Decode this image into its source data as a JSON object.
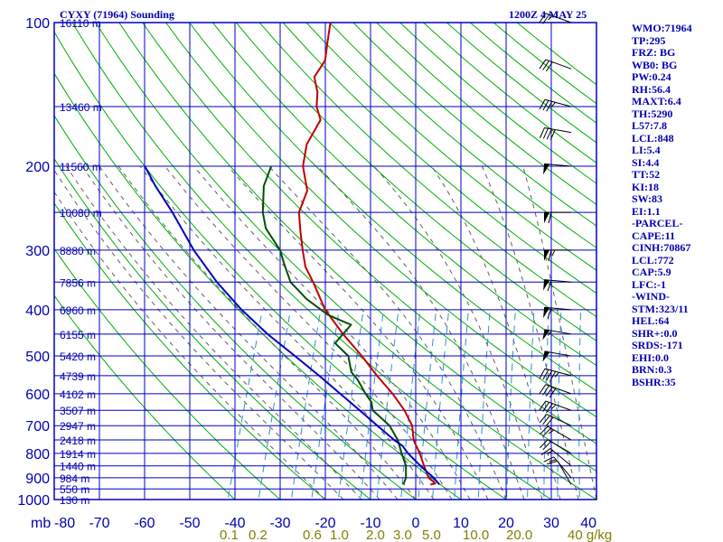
{
  "header": {
    "title": "CYXY (71964) Sounding",
    "time": "1200Z  4 MAY 25"
  },
  "colors": {
    "grid": "#0000c0",
    "isotherm": "#0000c0",
    "dry_adiabat": "#00b000",
    "moist_adiabat": "#606060",
    "mixing_ratio": "#3090d0",
    "temperature": "#c00000",
    "dewpoint": "#005000",
    "parcel": "#0000c0",
    "wind_barb": "#000000",
    "text": "#0000b0",
    "mixing_label": "#808000"
  },
  "indices": [
    "WMO:71964",
    "TP:295",
    "FRZ: BG",
    "WB0: BG",
    "PW:0.24",
    "RH:56.4",
    "MAXT:6.4",
    "TH:5290",
    "L57:7.8",
    "LCL:848",
    "LI:5.4",
    "SI:4.4",
    "TT:52",
    "KI:18",
    "SW:83",
    "EI:1.1",
    "-PARCEL-",
    "CAPE:11",
    "CINH:70867",
    "LCL:772",
    "CAP:5.9",
    "LFC:-1",
    "-WIND-",
    "STM:323/11",
    "HEL:64",
    "SHR+:0.0",
    "SRDS:-171",
    "EHI:0.0",
    "BRN:0.3",
    "BSHR:35"
  ],
  "chart_data": {
    "type": "line",
    "diagram": "skew-T log-P",
    "pressure_axis": {
      "unit": "mb",
      "labels": [
        "100",
        "200",
        "300",
        "400",
        "500",
        "600",
        "700",
        "800",
        "900",
        "1000"
      ],
      "range": [
        100,
        1000
      ],
      "log_scale": true
    },
    "temperature_axis": {
      "labels": [
        "-80",
        "-70",
        "-60",
        "-50",
        "-40",
        "-30",
        "-20",
        "-10",
        "0",
        "10",
        "20",
        "30",
        "40"
      ],
      "range": [
        -80,
        40
      ]
    },
    "mixing_ratio_labels": [
      "0.1",
      "0.2",
      "0.6",
      "1.0",
      "2.0",
      "3.0",
      "5.0",
      "10.0",
      "20.0",
      "40 g/kg"
    ],
    "height_labels": [
      {
        "p": 100,
        "label": "16110 m"
      },
      {
        "p": 150,
        "label": "13460 m"
      },
      {
        "p": 200,
        "label": "11560 m"
      },
      {
        "p": 250,
        "label": "10080 m"
      },
      {
        "p": 300,
        "label": "8880 m"
      },
      {
        "p": 350,
        "label": "7856 m"
      },
      {
        "p": 400,
        "label": "6960 m"
      },
      {
        "p": 450,
        "label": "6155 m"
      },
      {
        "p": 500,
        "label": "5420 m"
      },
      {
        "p": 550,
        "label": "4739 m"
      },
      {
        "p": 600,
        "label": "4102 m"
      },
      {
        "p": 650,
        "label": "3507 m"
      },
      {
        "p": 700,
        "label": "2947 m"
      },
      {
        "p": 750,
        "label": "2418 m"
      },
      {
        "p": 800,
        "label": "1914 m"
      },
      {
        "p": 850,
        "label": "1440 m"
      },
      {
        "p": 900,
        "label": "984 m"
      },
      {
        "p": 950,
        "label": "550 m"
      },
      {
        "p": 1000,
        "label": "130 m"
      }
    ],
    "mixing_ratio_lines_gkg": [
      0.1,
      0.2,
      0.4,
      0.6,
      1,
      1.5,
      2,
      3,
      4,
      5,
      7,
      10,
      15,
      20,
      25,
      30,
      40
    ],
    "series": [
      {
        "key": "temperature",
        "points": [
          [
            930,
            2
          ],
          [
            925,
            3
          ],
          [
            900,
            1
          ],
          [
            850,
            -1
          ],
          [
            800,
            -3
          ],
          [
            750,
            -5.5
          ],
          [
            700,
            -7
          ],
          [
            650,
            -10
          ],
          [
            600,
            -14
          ],
          [
            550,
            -19
          ],
          [
            500,
            -24
          ],
          [
            450,
            -30
          ],
          [
            400,
            -36
          ],
          [
            350,
            -41
          ],
          [
            325,
            -44
          ],
          [
            300,
            -46
          ],
          [
            275,
            -48
          ],
          [
            250,
            -50
          ],
          [
            225,
            -50
          ],
          [
            200,
            -53
          ],
          [
            180,
            -54
          ],
          [
            160,
            -53
          ],
          [
            150,
            -55
          ],
          [
            140,
            -56
          ],
          [
            130,
            -58
          ],
          [
            120,
            -57
          ],
          [
            110,
            -58
          ],
          [
            100,
            -59
          ]
        ]
      },
      {
        "key": "dewpoint",
        "points": [
          [
            930,
            -4
          ],
          [
            900,
            -4
          ],
          [
            850,
            -5
          ],
          [
            800,
            -7
          ],
          [
            750,
            -9
          ],
          [
            700,
            -12
          ],
          [
            650,
            -17
          ],
          [
            625,
            -18
          ],
          [
            600,
            -20
          ],
          [
            560,
            -23
          ],
          [
            540,
            -25
          ],
          [
            500,
            -27
          ],
          [
            470,
            -31
          ],
          [
            430,
            -29
          ],
          [
            420,
            -32
          ],
          [
            410,
            -35
          ],
          [
            380,
            -41
          ],
          [
            350,
            -46
          ],
          [
            320,
            -49
          ],
          [
            300,
            -51
          ],
          [
            270,
            -56
          ],
          [
            250,
            -58
          ],
          [
            220,
            -60
          ],
          [
            200,
            -60
          ]
        ]
      },
      {
        "key": "parcel",
        "points": [
          [
            930,
            4
          ],
          [
            900,
            2.1
          ],
          [
            850,
            -1.8
          ],
          [
            800,
            -5.6
          ],
          [
            772,
            -7.4
          ],
          [
            750,
            -9.8
          ],
          [
            700,
            -14.7
          ],
          [
            650,
            -19.9
          ],
          [
            600,
            -25.6
          ],
          [
            550,
            -31.8
          ],
          [
            500,
            -38.8
          ],
          [
            450,
            -46.7
          ],
          [
            400,
            -54.5
          ],
          [
            350,
            -62.3
          ],
          [
            300,
            -70.1
          ],
          [
            250,
            -78
          ],
          [
            220,
            -84
          ],
          [
            200,
            -88
          ]
        ]
      }
    ],
    "wind_barbs": [
      {
        "p": 930,
        "dir": 330,
        "spd": 10
      },
      {
        "p": 900,
        "dir": 320,
        "spd": 15
      },
      {
        "p": 850,
        "dir": 310,
        "spd": 15
      },
      {
        "p": 800,
        "dir": 300,
        "spd": 20
      },
      {
        "p": 750,
        "dir": 300,
        "spd": 25
      },
      {
        "p": 700,
        "dir": 295,
        "spd": 30
      },
      {
        "p": 650,
        "dir": 290,
        "spd": 35
      },
      {
        "p": 600,
        "dir": 290,
        "spd": 40
      },
      {
        "p": 550,
        "dir": 285,
        "spd": 45
      },
      {
        "p": 500,
        "dir": 280,
        "spd": 50
      },
      {
        "p": 450,
        "dir": 280,
        "spd": 55
      },
      {
        "p": 400,
        "dir": 275,
        "spd": 60
      },
      {
        "p": 350,
        "dir": 275,
        "spd": 60
      },
      {
        "p": 300,
        "dir": 270,
        "spd": 65
      },
      {
        "p": 250,
        "dir": 270,
        "spd": 60
      },
      {
        "p": 200,
        "dir": 275,
        "spd": 50
      },
      {
        "p": 170,
        "dir": 280,
        "spd": 40
      },
      {
        "p": 150,
        "dir": 285,
        "spd": 35
      },
      {
        "p": 125,
        "dir": 290,
        "spd": 30
      },
      {
        "p": 100,
        "dir": 290,
        "spd": 25
      }
    ]
  }
}
